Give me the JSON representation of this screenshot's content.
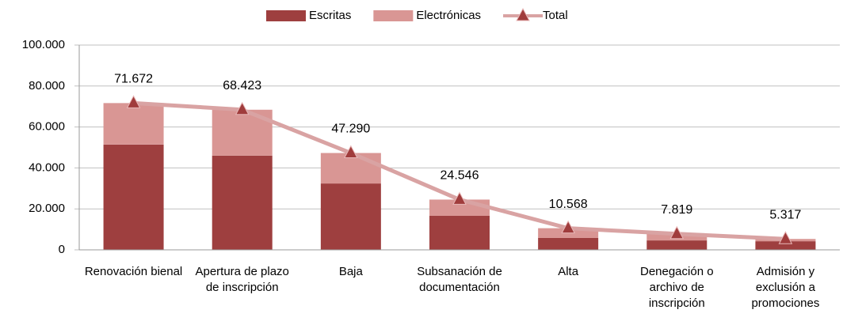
{
  "chart_data": {
    "type": "bar",
    "categories": [
      "Renovación bienal",
      "Apertura de plazo de inscripción",
      "Baja",
      "Subsanación de documentación",
      "Alta",
      "Denegación o archivo de inscripción",
      "Admisión y exclusión a promociones"
    ],
    "series": [
      {
        "name": "Escritas",
        "color": "#9e3f3f",
        "values": [
          51400,
          46000,
          32400,
          16600,
          5800,
          4600,
          4200
        ]
      },
      {
        "name": "Electrónicas",
        "color": "#d99694",
        "values": [
          20272,
          22423,
          14890,
          7946,
          4768,
          3219,
          1117
        ]
      },
      {
        "name": "Total",
        "type": "line",
        "color": "#d9a3a3",
        "marker_color": "#a03c3c",
        "values": [
          71672,
          68423,
          47290,
          24546,
          10568,
          7819,
          5317
        ],
        "value_labels": [
          "71.672",
          "68.423",
          "47.290",
          "24.546",
          "10.568",
          "7.819",
          "5.317"
        ]
      }
    ],
    "ylim": [
      0,
      100000
    ],
    "yticks": [
      0,
      {
        "value": 20000,
        "label": "20.000"
      },
      {
        "value": 40000,
        "label": "40.000"
      },
      {
        "value": 60000,
        "label": "60.000"
      },
      {
        "value": 80000,
        "label": "80.000"
      },
      {
        "value": 100000,
        "label": "100.000"
      }
    ],
    "grid": true,
    "legend": "top"
  }
}
